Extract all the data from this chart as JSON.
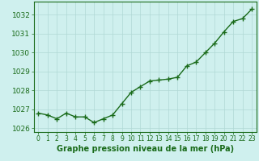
{
  "x": [
    0,
    1,
    2,
    3,
    4,
    5,
    6,
    7,
    8,
    9,
    10,
    11,
    12,
    13,
    14,
    15,
    16,
    17,
    18,
    19,
    20,
    21,
    22,
    23
  ],
  "y": [
    1026.8,
    1026.7,
    1026.5,
    1026.8,
    1026.6,
    1026.6,
    1026.3,
    1026.5,
    1026.7,
    1027.3,
    1027.9,
    1028.2,
    1028.5,
    1028.55,
    1028.6,
    1028.7,
    1029.3,
    1029.5,
    1030.0,
    1030.5,
    1031.1,
    1031.65,
    1031.8,
    1032.3
  ],
  "line_color": "#1a6b1a",
  "marker": "+",
  "marker_size": 4,
  "line_width": 1.0,
  "background_color": "#cff0ee",
  "grid_color": "#b0d8d5",
  "xlabel": "Graphe pression niveau de la mer (hPa)",
  "xlabel_color": "#1a6b1a",
  "xlabel_fontsize": 7,
  "tick_color": "#1a6b1a",
  "ytick_fontsize": 6.5,
  "xtick_fontsize": 5.5,
  "ylim": [
    1025.8,
    1032.7
  ],
  "yticks": [
    1026,
    1027,
    1028,
    1029,
    1030,
    1031,
    1032
  ],
  "xlim": [
    -0.5,
    23.5
  ],
  "xticks": [
    0,
    1,
    2,
    3,
    4,
    5,
    6,
    7,
    8,
    9,
    10,
    11,
    12,
    13,
    14,
    15,
    16,
    17,
    18,
    19,
    20,
    21,
    22,
    23
  ]
}
